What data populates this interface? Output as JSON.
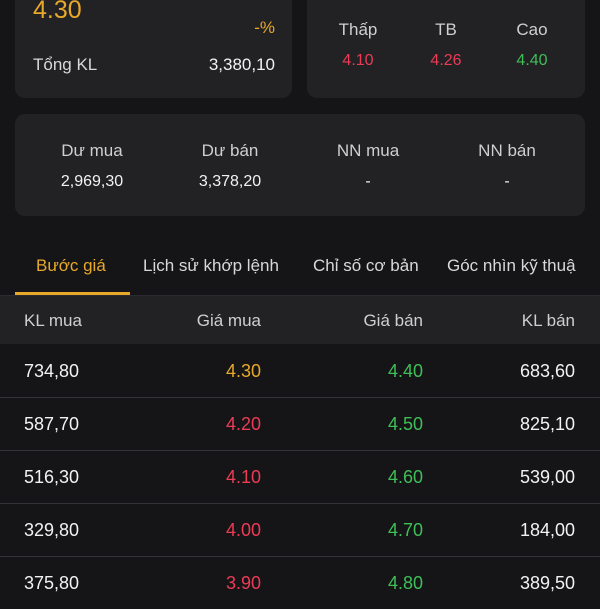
{
  "summary": {
    "price": "4.30",
    "percent": "-%",
    "volume_label": "Tổng KL",
    "volume_value": "3,380,10"
  },
  "range": {
    "low_label": "Thấp",
    "low_value": "4.10",
    "avg_label": "TB",
    "avg_value": "4.26",
    "high_label": "Cao",
    "high_value": "4.40"
  },
  "depth": {
    "buy_label": "Dư mua",
    "buy_value": "2,969,30",
    "sell_label": "Dư bán",
    "sell_value": "3,378,20",
    "foreign_buy_label": "NN mua",
    "foreign_buy_value": "-",
    "foreign_sell_label": "NN bán",
    "foreign_sell_value": "-"
  },
  "tabs": [
    {
      "label": "Bước giá"
    },
    {
      "label": "Lịch sử khớp lệnh"
    },
    {
      "label": "Chỉ số cơ bản"
    },
    {
      "label": "Góc nhìn kỹ thuậ"
    }
  ],
  "table": {
    "headers": [
      "KL mua",
      "Giá mua",
      "Giá bán",
      "KL bán"
    ],
    "rows": [
      [
        "734,80",
        "4.30",
        "4.40",
        "683,60"
      ],
      [
        "587,70",
        "4.20",
        "4.50",
        "825,10"
      ],
      [
        "516,30",
        "4.10",
        "4.60",
        "539,00"
      ],
      [
        "329,80",
        "4.00",
        "4.70",
        "184,00"
      ],
      [
        "375,80",
        "3.90",
        "4.80",
        "389,50"
      ]
    ]
  },
  "colors": {
    "reference": "#e8a82a",
    "down": "#ec3b55",
    "up": "#3fbf57",
    "background": "#151518",
    "card": "#222225"
  }
}
